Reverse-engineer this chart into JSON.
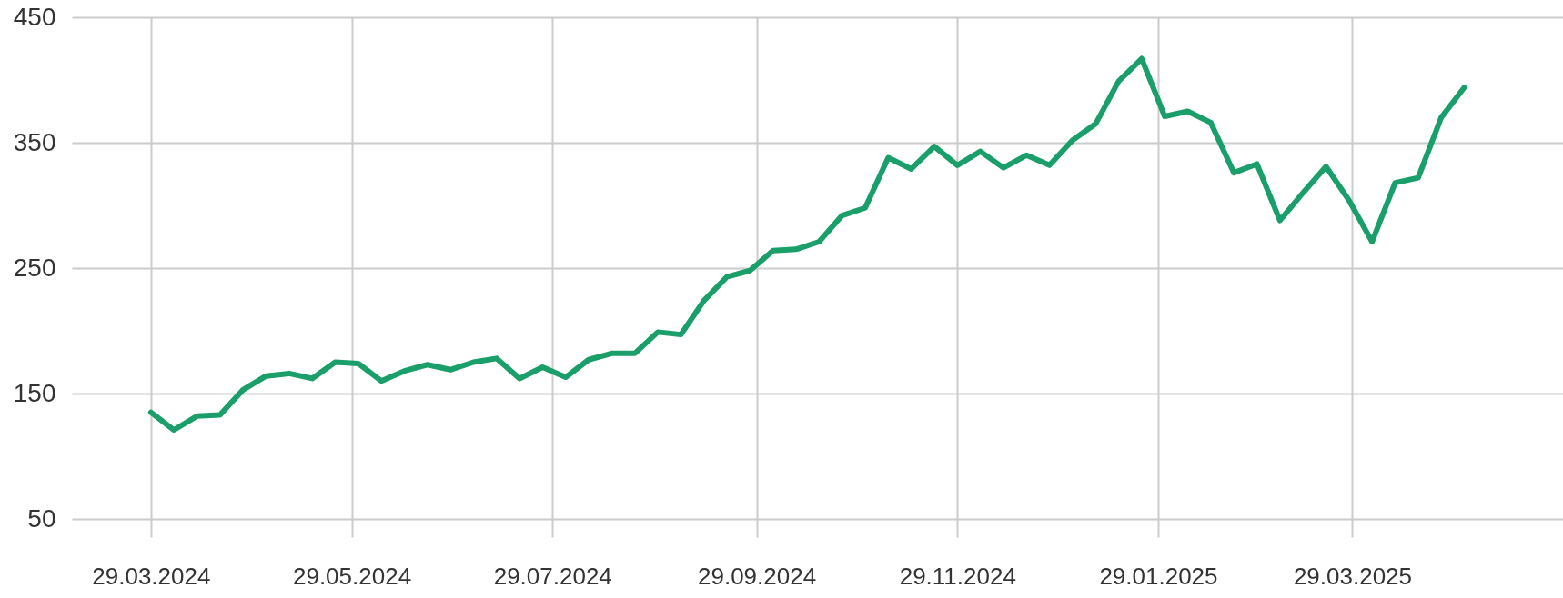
{
  "chart_data": {
    "type": "line",
    "x": [
      "2024-03-29",
      "2024-04-05",
      "2024-04-12",
      "2024-04-19",
      "2024-04-26",
      "2024-05-03",
      "2024-05-10",
      "2024-05-17",
      "2024-05-24",
      "2024-05-31",
      "2024-06-07",
      "2024-06-14",
      "2024-06-21",
      "2024-06-28",
      "2024-07-05",
      "2024-07-12",
      "2024-07-19",
      "2024-07-26",
      "2024-08-02",
      "2024-08-09",
      "2024-08-16",
      "2024-08-23",
      "2024-08-30",
      "2024-09-06",
      "2024-09-13",
      "2024-09-20",
      "2024-09-27",
      "2024-10-04",
      "2024-10-11",
      "2024-10-18",
      "2024-10-25",
      "2024-11-01",
      "2024-11-08",
      "2024-11-15",
      "2024-11-22",
      "2024-11-29",
      "2024-12-06",
      "2024-12-13",
      "2024-12-20",
      "2024-12-27",
      "2025-01-03",
      "2025-01-10",
      "2025-01-17",
      "2025-01-24",
      "2025-01-31",
      "2025-02-07",
      "2025-02-14",
      "2025-02-21",
      "2025-02-28",
      "2025-03-07",
      "2025-03-14",
      "2025-03-21",
      "2025-03-28",
      "2025-04-04",
      "2025-04-11",
      "2025-04-18",
      "2025-04-25",
      "2025-05-02"
    ],
    "series": [
      {
        "color": "#1a9e6a",
        "values": [
          135,
          121,
          132,
          133,
          153,
          164,
          166,
          162,
          175,
          174,
          160,
          168,
          173,
          169,
          175,
          178,
          162,
          171,
          163,
          177,
          182,
          182,
          199,
          197,
          224,
          243,
          248,
          264,
          265,
          271,
          292,
          298,
          338,
          329,
          347,
          332,
          343,
          330,
          340,
          332,
          352,
          365,
          399,
          417,
          371,
          375,
          366,
          326,
          333,
          288,
          310,
          331,
          304,
          271,
          318,
          322,
          370,
          394
        ]
      }
    ],
    "xlim": [
      "2024-03-05",
      "2025-06-01"
    ],
    "xticks": [
      {
        "value": "2024-03-29",
        "label": "29.03.2024"
      },
      {
        "value": "2024-05-29",
        "label": "29.05.2024"
      },
      {
        "value": "2024-07-29",
        "label": "29.07.2024"
      },
      {
        "value": "2024-09-29",
        "label": "29.09.2024"
      },
      {
        "value": "2024-11-29",
        "label": "29.11.2024"
      },
      {
        "value": "2025-01-29",
        "label": "29.01.2025"
      },
      {
        "value": "2025-03-29",
        "label": "29.03.2025"
      }
    ],
    "ylim": [
      50,
      450
    ],
    "yticks": [
      50,
      150,
      250,
      350,
      450
    ],
    "grid": true,
    "marker": "none",
    "line_style": "solid"
  }
}
